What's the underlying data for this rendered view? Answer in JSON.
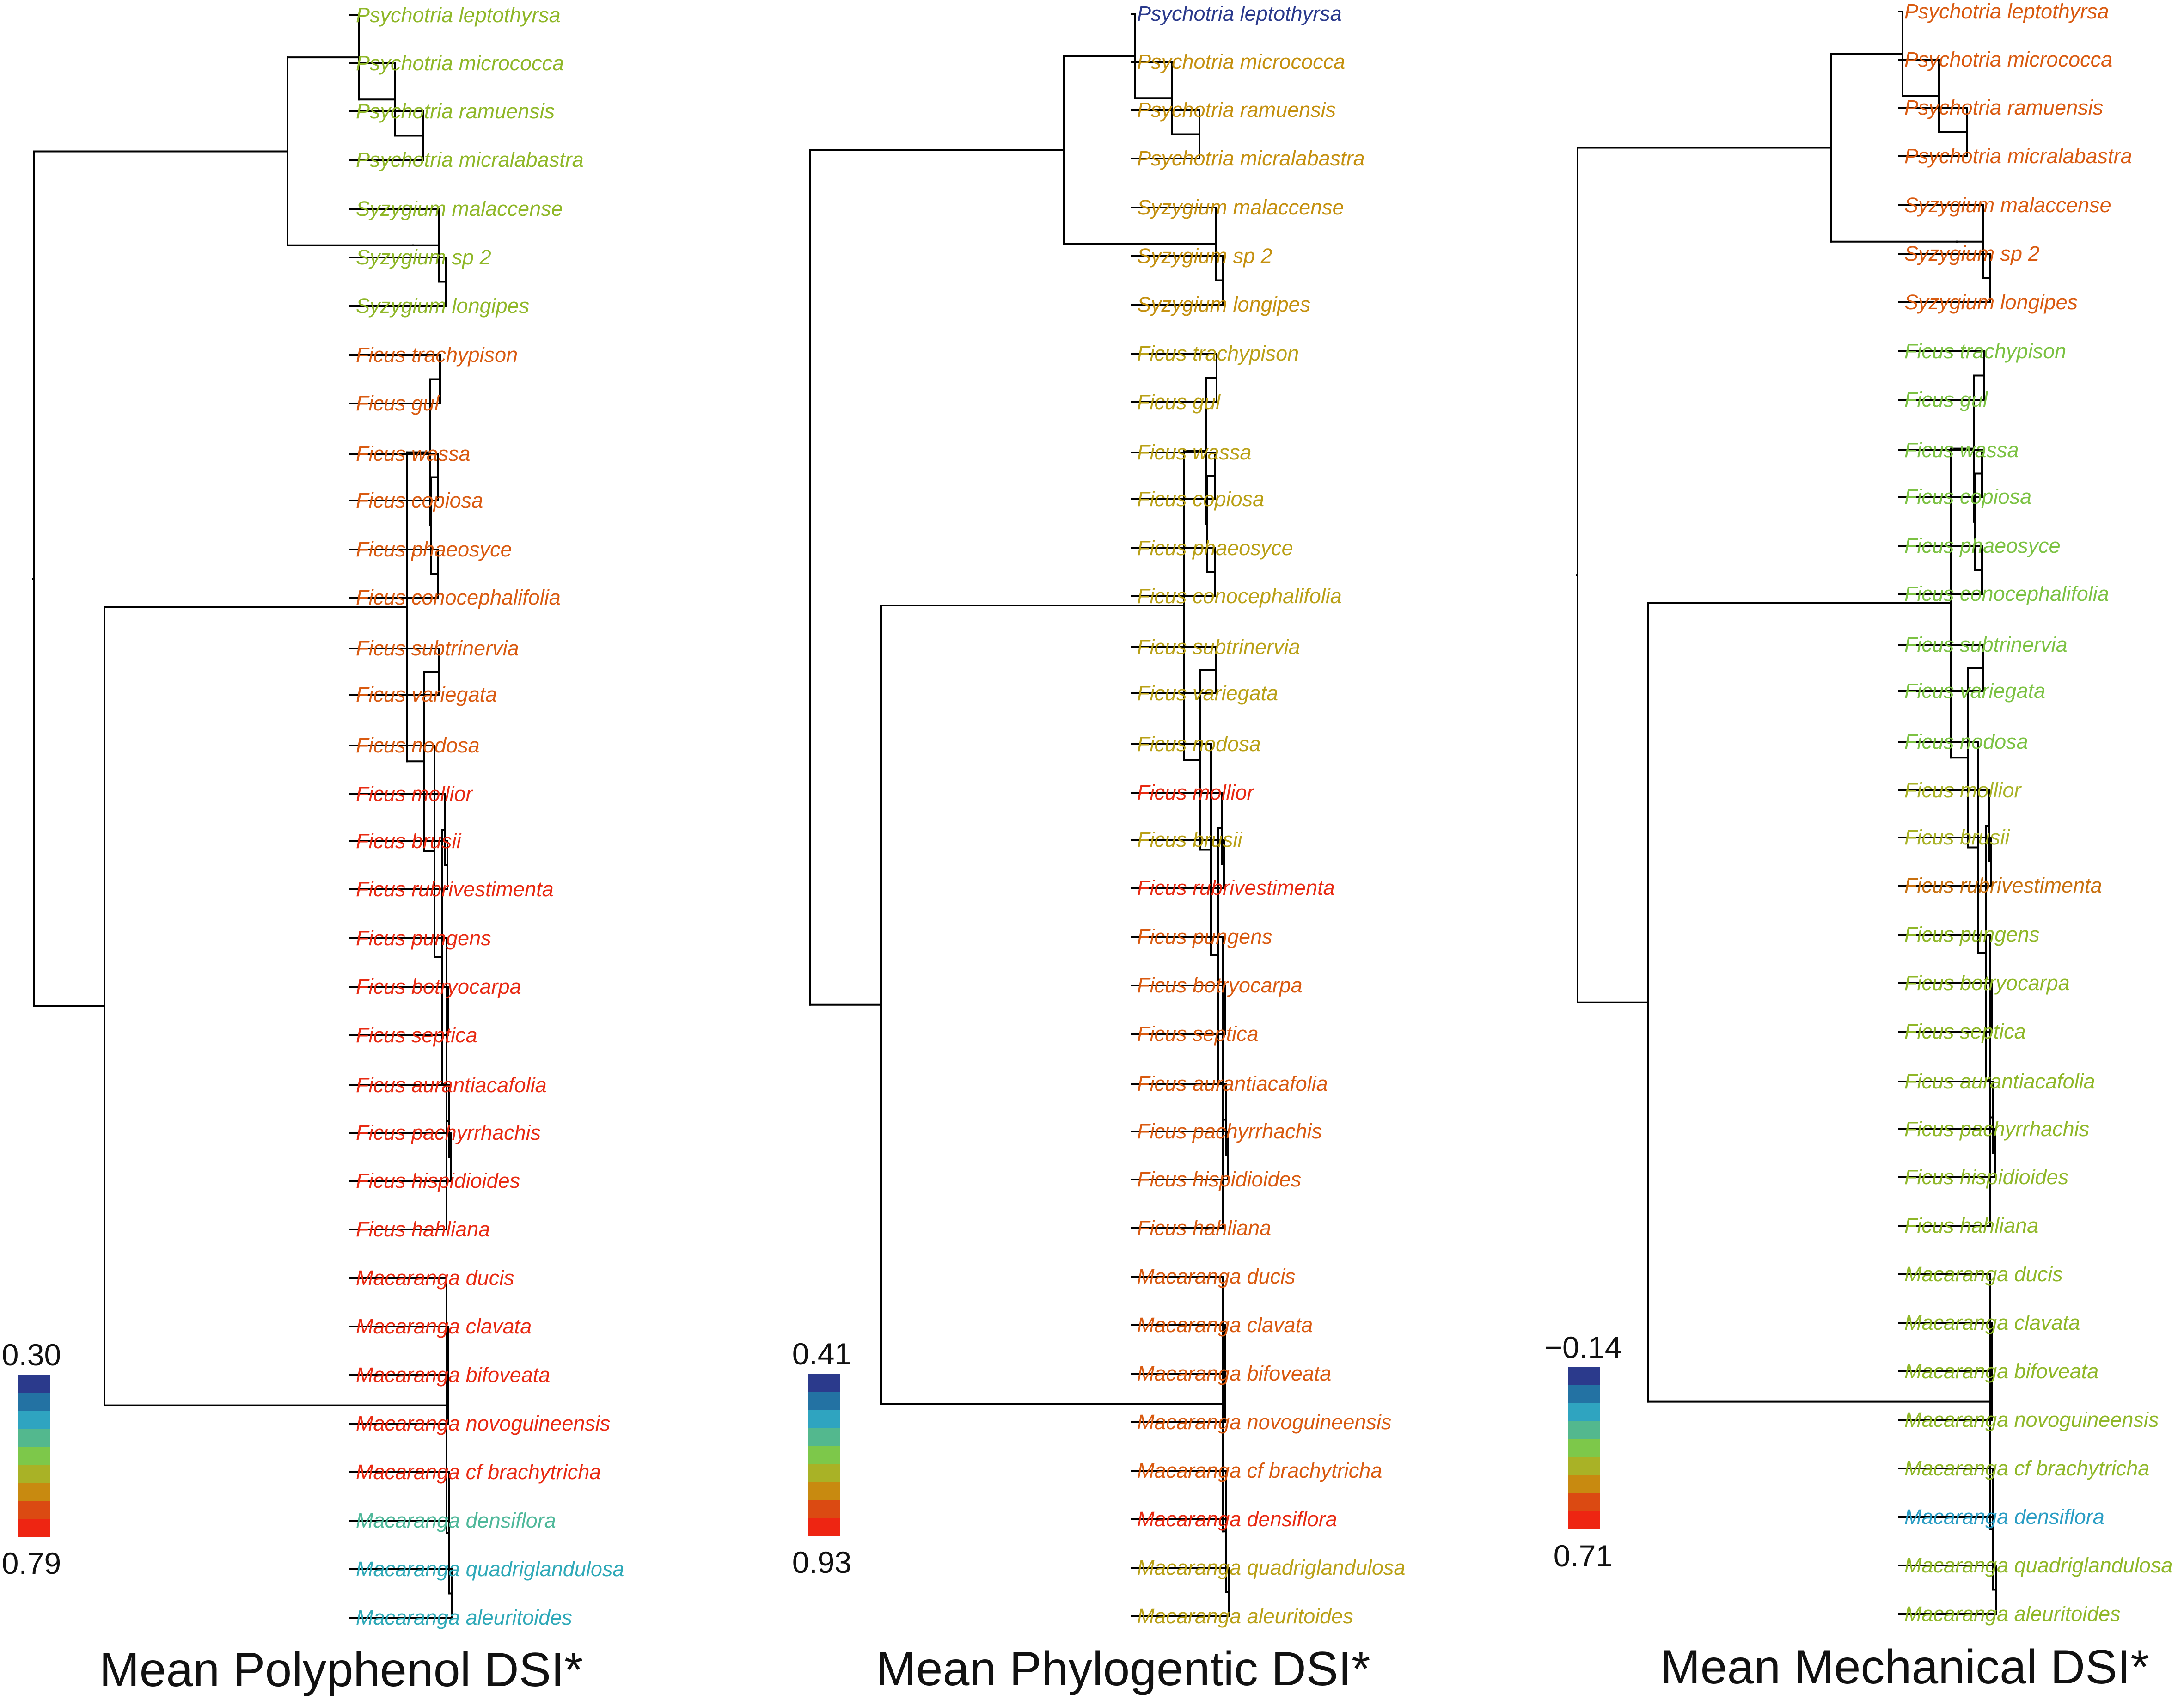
{
  "figure": {
    "panels": [
      {
        "id": "polyphenol",
        "title": "Mean Polyphenol DSI*",
        "scale_top": "0.30",
        "scale_bottom": "0.79",
        "scale_colors": [
          "#2b3a8c",
          "#2372a3",
          "#2fa4c0",
          "#53b88e",
          "#7dc84a",
          "#a9b226",
          "#c88a10",
          "#db4a12",
          "#ee2512"
        ],
        "tree_values": [
          0.3,
          0.33,
          0.3,
          0.3,
          0.22,
          0.2,
          0.22,
          0.2,
          0.09,
          0.09,
          0.09,
          0.08,
          0.04,
          0.04,
          0.04,
          0.04,
          0.02,
          0.02,
          0.02,
          0.02,
          0.02,
          0.02,
          0.02,
          0.02,
          0.01,
          0.01,
          0.01,
          0.01,
          0.01,
          0.01,
          0.0,
          0.0,
          0.08,
          0.07
        ],
        "leaves": [
          {
            "name": "Psychotria leptothyrsa",
            "color": "#8fb728"
          },
          {
            "name": "Psychotria micrococca",
            "color": "#8fb728"
          },
          {
            "name": "Psychotria ramuensis",
            "color": "#8fb728"
          },
          {
            "name": "Psychotria micralabastra",
            "color": "#8fb728"
          },
          {
            "name": "Syzygium malaccense",
            "color": "#8fb728"
          },
          {
            "name": "Syzygium sp 2",
            "color": "#8fb728"
          },
          {
            "name": "Syzygium longipes",
            "color": "#8fb728"
          },
          {
            "name": "Ficus trachypison",
            "color": "#d95a10"
          },
          {
            "name": "Ficus gul",
            "color": "#d95a10"
          },
          {
            "name": "Ficus wassa",
            "color": "#d95a10"
          },
          {
            "name": "Ficus copiosa",
            "color": "#d95a10"
          },
          {
            "name": "Ficus phaeosyce",
            "color": "#d95a10"
          },
          {
            "name": "Ficus conocephalifolia",
            "color": "#d95a10"
          },
          {
            "name": "Ficus subtrinervia",
            "color": "#d95a10"
          },
          {
            "name": "Ficus variegata",
            "color": "#d95a10"
          },
          {
            "name": "Ficus nodosa",
            "color": "#d95a10"
          },
          {
            "name": "Ficus mollior",
            "color": "#e82a12"
          },
          {
            "name": "Ficus brusii",
            "color": "#e82a12"
          },
          {
            "name": "Ficus rubrivestimenta",
            "color": "#e82a12"
          },
          {
            "name": "Ficus pungens",
            "color": "#e82a12"
          },
          {
            "name": "Ficus botryocarpa",
            "color": "#e82a12"
          },
          {
            "name": "Ficus septica",
            "color": "#e82a12"
          },
          {
            "name": "Ficus aurantiacafolia",
            "color": "#e82a12"
          },
          {
            "name": "Ficus pachyrrhachis",
            "color": "#e82a12"
          },
          {
            "name": "Ficus hispidioides",
            "color": "#e82a12"
          },
          {
            "name": "Ficus hahliana",
            "color": "#e82a12"
          },
          {
            "name": "Macaranga ducis",
            "color": "#e82a12"
          },
          {
            "name": "Macaranga clavata",
            "color": "#e82a12"
          },
          {
            "name": "Macaranga bifoveata",
            "color": "#e82a12"
          },
          {
            "name": "Macaranga novoguineensis",
            "color": "#e82a12"
          },
          {
            "name": "Macaranga cf brachytricha",
            "color": "#e82a12"
          },
          {
            "name": "Macaranga densiflora",
            "color": "#4fb89a"
          },
          {
            "name": "Macaranga quadriglandulosa",
            "color": "#2fa9b8"
          },
          {
            "name": "Macaranga aleuritoides",
            "color": "#2fa9b8"
          }
        ]
      },
      {
        "id": "phylogenetic",
        "title": "Mean Phylogentic DSI*",
        "scale_top": "0.41",
        "scale_bottom": "0.93",
        "scale_colors": [
          "#2b3a8c",
          "#2372a3",
          "#2fa4c0",
          "#53b88e",
          "#7dc84a",
          "#a9b226",
          "#c88a10",
          "#db4a12",
          "#ee2512"
        ],
        "leaves": [
          {
            "name": "Psychotria leptothyrsa",
            "color": "#2b3a8c"
          },
          {
            "name": "Psychotria micrococca",
            "color": "#c4900f"
          },
          {
            "name": "Psychotria ramuensis",
            "color": "#c4900f"
          },
          {
            "name": "Psychotria micralabastra",
            "color": "#c4900f"
          },
          {
            "name": "Syzygium malaccense",
            "color": "#c4900f"
          },
          {
            "name": "Syzygium sp 2",
            "color": "#c4900f"
          },
          {
            "name": "Syzygium longipes",
            "color": "#c4900f"
          },
          {
            "name": "Ficus trachypison",
            "color": "#b9a016"
          },
          {
            "name": "Ficus gul",
            "color": "#b9a016"
          },
          {
            "name": "Ficus wassa",
            "color": "#b9a016"
          },
          {
            "name": "Ficus copiosa",
            "color": "#b9a016"
          },
          {
            "name": "Ficus phaeosyce",
            "color": "#b9a016"
          },
          {
            "name": "Ficus conocephalifolia",
            "color": "#b9a016"
          },
          {
            "name": "Ficus subtrinervia",
            "color": "#b9a016"
          },
          {
            "name": "Ficus variegata",
            "color": "#b9a016"
          },
          {
            "name": "Ficus nodosa",
            "color": "#b9a016"
          },
          {
            "name": "Ficus mollior",
            "color": "#e82a12"
          },
          {
            "name": "Ficus brusii",
            "color": "#b9a016"
          },
          {
            "name": "Ficus rubrivestimenta",
            "color": "#e82a12"
          },
          {
            "name": "Ficus pungens",
            "color": "#d95a10"
          },
          {
            "name": "Ficus botryocarpa",
            "color": "#d95a10"
          },
          {
            "name": "Ficus septica",
            "color": "#d95a10"
          },
          {
            "name": "Ficus aurantiacafolia",
            "color": "#d95a10"
          },
          {
            "name": "Ficus pachyrrhachis",
            "color": "#d95a10"
          },
          {
            "name": "Ficus hispidioides",
            "color": "#d95a10"
          },
          {
            "name": "Ficus hahliana",
            "color": "#d95a10"
          },
          {
            "name": "Macaranga ducis",
            "color": "#d95a10"
          },
          {
            "name": "Macaranga clavata",
            "color": "#d95a10"
          },
          {
            "name": "Macaranga bifoveata",
            "color": "#d95a10"
          },
          {
            "name": "Macaranga novoguineensis",
            "color": "#d95a10"
          },
          {
            "name": "Macaranga cf brachytricha",
            "color": "#d95a10"
          },
          {
            "name": "Macaranga densiflora",
            "color": "#e82a12"
          },
          {
            "name": "Macaranga quadriglandulosa",
            "color": "#b9a016"
          },
          {
            "name": "Macaranga aleuritoides",
            "color": "#b9a016"
          }
        ]
      },
      {
        "id": "mechanical",
        "title": "Mean Mechanical DSI*",
        "scale_top": "−0.14",
        "scale_bottom": "0.71",
        "scale_colors": [
          "#2b3a8c",
          "#2372a3",
          "#2fa4c0",
          "#53b88e",
          "#7dc84a",
          "#a9b226",
          "#c88a10",
          "#db4a12",
          "#ee2512"
        ],
        "leaves": [
          {
            "name": "Psychotria leptothyrsa",
            "color": "#d95a10"
          },
          {
            "name": "Psychotria micrococca",
            "color": "#d95a10"
          },
          {
            "name": "Psychotria ramuensis",
            "color": "#d95a10"
          },
          {
            "name": "Psychotria micralabastra",
            "color": "#d95a10"
          },
          {
            "name": "Syzygium malaccense",
            "color": "#d95a10"
          },
          {
            "name": "Syzygium sp 2",
            "color": "#d95a10"
          },
          {
            "name": "Syzygium longipes",
            "color": "#d95a10"
          },
          {
            "name": "Ficus trachypison",
            "color": "#7cc243"
          },
          {
            "name": "Ficus gul",
            "color": "#7cc243"
          },
          {
            "name": "Ficus wassa",
            "color": "#7cc243"
          },
          {
            "name": "Ficus copiosa",
            "color": "#7cc243"
          },
          {
            "name": "Ficus phaeosyce",
            "color": "#7cc243"
          },
          {
            "name": "Ficus conocephalifolia",
            "color": "#7cc243"
          },
          {
            "name": "Ficus subtrinervia",
            "color": "#7cc243"
          },
          {
            "name": "Ficus variegata",
            "color": "#7cc243"
          },
          {
            "name": "Ficus nodosa",
            "color": "#7cc243"
          },
          {
            "name": "Ficus mollior",
            "color": "#a9b226"
          },
          {
            "name": "Ficus brusii",
            "color": "#a9b226"
          },
          {
            "name": "Ficus rubrivestimenta",
            "color": "#c8700f"
          },
          {
            "name": "Ficus pungens",
            "color": "#8fb728"
          },
          {
            "name": "Ficus botryocarpa",
            "color": "#8fb728"
          },
          {
            "name": "Ficus septica",
            "color": "#8fb728"
          },
          {
            "name": "Ficus aurantiacafolia",
            "color": "#8fb728"
          },
          {
            "name": "Ficus pachyrrhachis",
            "color": "#8fb728"
          },
          {
            "name": "Ficus hispidioides",
            "color": "#8fb728"
          },
          {
            "name": "Ficus hahliana",
            "color": "#8fb728"
          },
          {
            "name": "Macaranga ducis",
            "color": "#8fb728"
          },
          {
            "name": "Macaranga clavata",
            "color": "#8fb728"
          },
          {
            "name": "Macaranga bifoveata",
            "color": "#8fb728"
          },
          {
            "name": "Macaranga novoguineensis",
            "color": "#8fb728"
          },
          {
            "name": "Macaranga cf brachytricha",
            "color": "#8fb728"
          },
          {
            "name": "Macaranga densiflora",
            "color": "#2a9dc4"
          },
          {
            "name": "Macaranga quadriglandulosa",
            "color": "#8fb728"
          },
          {
            "name": "Macaranga aleuritoides",
            "color": "#8fb728"
          }
        ]
      }
    ]
  }
}
